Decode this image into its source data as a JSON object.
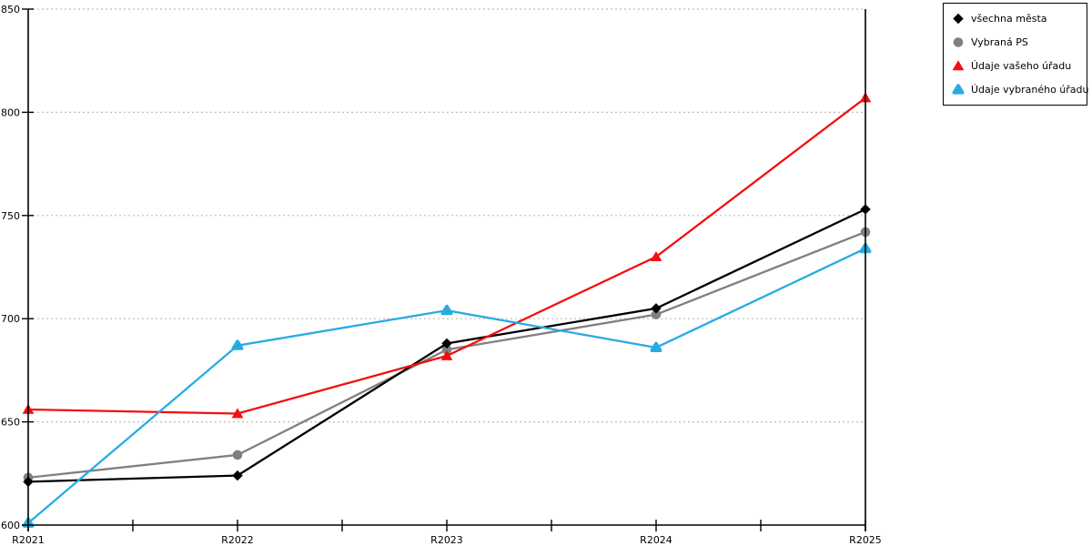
{
  "chart_data": {
    "type": "line",
    "categories": [
      "R2021",
      "R2022",
      "R2023",
      "R2024",
      "R2025"
    ],
    "series": [
      {
        "name": "všechna města",
        "color": "#000000",
        "marker": "diamond",
        "values": [
          621,
          624,
          688,
          705,
          753
        ]
      },
      {
        "name": "Vybraná PS",
        "color": "#808080",
        "marker": "circle",
        "values": [
          623,
          634,
          685,
          702,
          742
        ]
      },
      {
        "name": "Údaje vašeho úřadu",
        "color": "#f40e0e",
        "marker": "triangle",
        "values": [
          656,
          654,
          682,
          730,
          807
        ]
      },
      {
        "name": "Údaje vybraného úřadu",
        "color": "#29abe2",
        "marker": "triangle-rounded",
        "values": [
          601,
          687,
          704,
          686,
          734
        ]
      }
    ],
    "title": "",
    "xlabel": "",
    "ylabel": "",
    "ylim": [
      600,
      850
    ],
    "yticks": [
      600,
      650,
      700,
      750,
      800,
      850
    ],
    "grid": "dotted-horizontal",
    "gridline_color": "#bdbdbd",
    "axis_color": "#000000",
    "legend_position": "top-right",
    "plot_right_border": true,
    "minor_x_ticks_at_midpoints": true
  }
}
